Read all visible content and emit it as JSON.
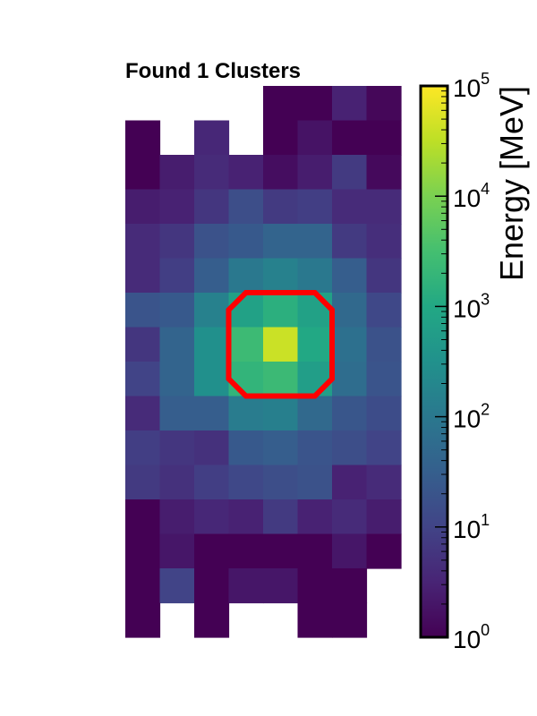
{
  "chart_data": {
    "type": "heatmap",
    "title": "Found 1 Clusters",
    "colorbar": {
      "label": "Energy [MeV]",
      "scale": "log",
      "range": [
        1,
        100000
      ],
      "colormap": "viridis",
      "tick_labels": [
        {
          "base": "10",
          "exp": "0"
        },
        {
          "base": "10",
          "exp": "1"
        },
        {
          "base": "10",
          "exp": "2"
        },
        {
          "base": "10",
          "exp": "3"
        },
        {
          "base": "10",
          "exp": "4"
        },
        {
          "base": "10",
          "exp": "5"
        }
      ]
    },
    "grid": {
      "columns": 8,
      "rows": 16
    },
    "cells": [
      [
        null,
        null,
        null,
        null,
        1.0,
        1.0,
        3.0,
        1.2
      ],
      [
        1.0,
        null,
        3.5,
        null,
        1.0,
        1.8,
        1.0,
        1.0
      ],
      [
        1.0,
        2.5,
        4.0,
        3.0,
        1.5,
        2.5,
        7.0,
        1.3
      ],
      [
        2.5,
        3.0,
        6.0,
        15,
        7,
        8,
        4,
        4
      ],
      [
        4,
        6,
        18,
        25,
        40,
        40,
        7,
        4.5
      ],
      [
        4,
        8,
        30,
        100,
        150,
        100,
        30,
        6
      ],
      [
        20,
        25,
        150,
        700,
        1400,
        700,
        50,
        12
      ],
      [
        6,
        40,
        300,
        2500,
        40000,
        1000,
        70,
        18
      ],
      [
        10,
        40,
        300,
        1800,
        2400,
        600,
        60,
        20
      ],
      [
        4,
        30,
        30,
        120,
        140,
        50,
        22,
        14
      ],
      [
        8,
        6,
        5,
        25,
        30,
        20,
        15,
        10
      ],
      [
        7,
        5,
        8,
        12,
        15,
        18,
        3,
        4
      ],
      [
        1.0,
        2.5,
        3.5,
        3.0,
        7.0,
        3.0,
        4.0,
        2.5
      ],
      [
        1.0,
        2.0,
        1.0,
        1.0,
        1.0,
        1.0,
        2.0,
        1.0
      ],
      [
        1.0,
        10,
        1.0,
        2.0,
        2.0,
        1.0,
        1.0,
        null
      ],
      [
        1.0,
        null,
        1.0,
        null,
        null,
        1.0,
        1.0,
        null
      ]
    ],
    "cluster_outline": {
      "label": "cluster",
      "color": "#ff0000",
      "center": {
        "col": 4,
        "row": 7
      },
      "half_width_cells": 1.5
    }
  }
}
